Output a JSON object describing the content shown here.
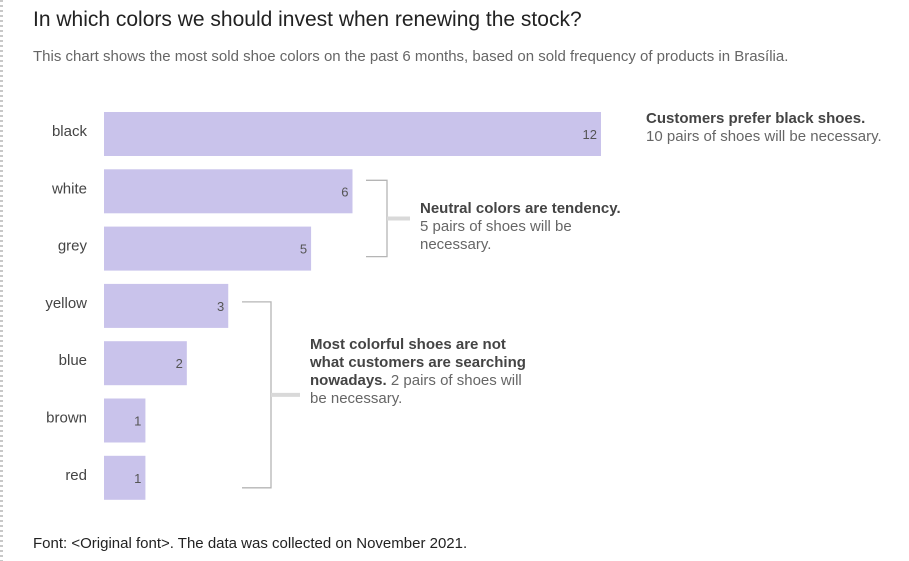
{
  "header": {
    "title": "In which colors we should invest when renewing the stock?",
    "subtitle": "This chart shows the most sold shoe colors on the past 6 months, based on sold frequency of products in Brasília."
  },
  "footer": {
    "text": "Font: <Original font>. The data was collected on November 2021."
  },
  "chart_data": {
    "type": "bar",
    "orientation": "horizontal",
    "categories": [
      "black",
      "white",
      "grey",
      "yellow",
      "blue",
      "brown",
      "red"
    ],
    "values": [
      12,
      6,
      5,
      3,
      2,
      1,
      1
    ],
    "title": "In which colors we should invest when renewing the stock?",
    "subtitle": "This chart shows the most sold shoe colors on the past 6 months, based on sold frequency of products in Brasília.",
    "xlabel": "",
    "ylabel": "",
    "xlim": [
      0,
      12
    ],
    "grid": false,
    "legend": "none",
    "bar_color": "#c9c3eb",
    "label_color": "#555555",
    "annotations": [
      {
        "target": [
          "black"
        ],
        "bold": "Customers prefer black shoes.",
        "text": "10 pairs of shoes will be necessary."
      },
      {
        "target": [
          "white",
          "grey"
        ],
        "bold": "Neutral colors are tendency.",
        "text": "5 pairs of shoes will be necessary."
      },
      {
        "target": [
          "yellow",
          "blue",
          "brown",
          "red"
        ],
        "bold": "Most colorful shoes are not what customers are searching nowadays.",
        "text": "2 pairs of shoes will be necessary."
      }
    ]
  }
}
